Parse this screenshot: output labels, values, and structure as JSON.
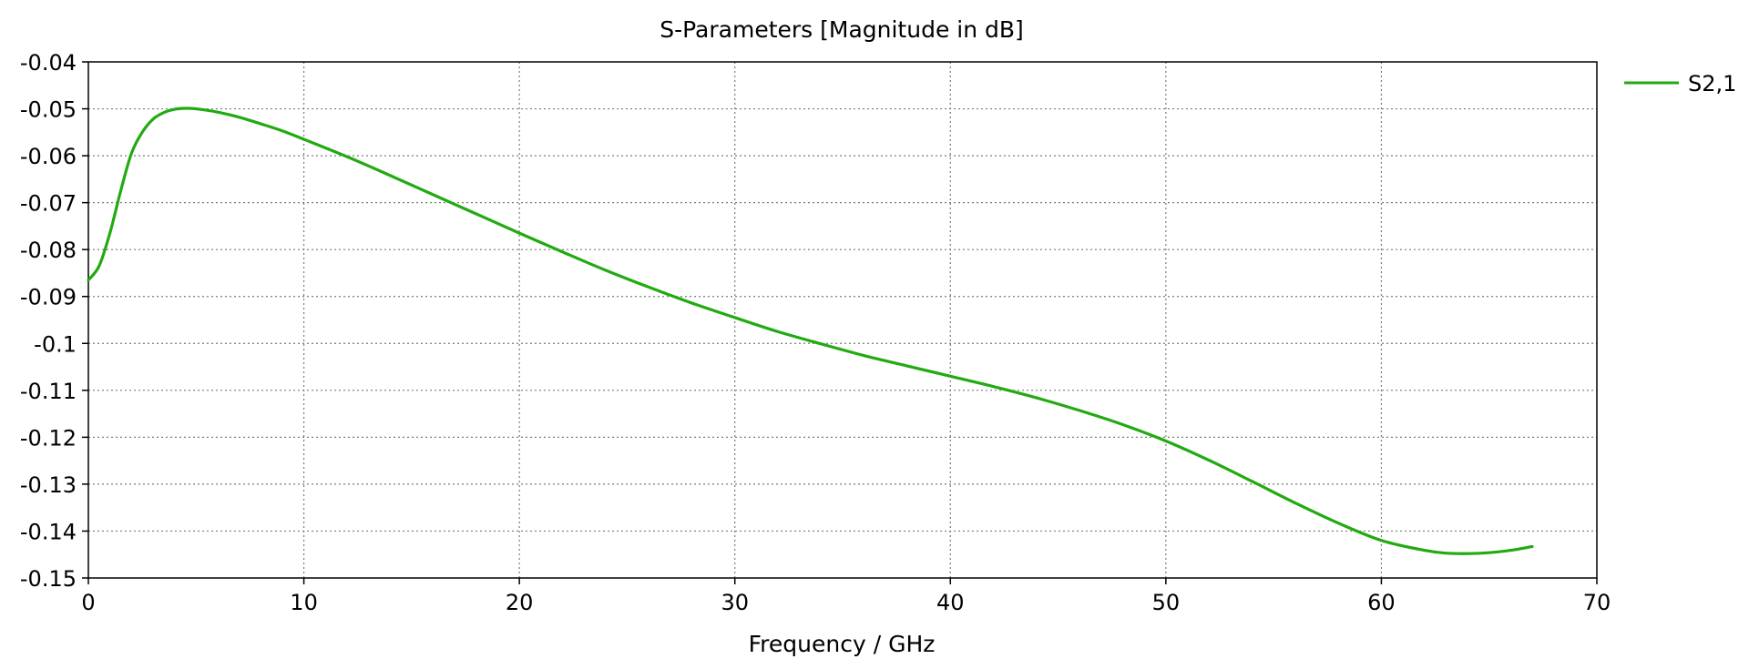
{
  "chart_data": {
    "type": "line",
    "title": "S-Parameters [Magnitude in dB]",
    "xlabel": "Frequency / GHz",
    "ylabel": "",
    "xlim": [
      0,
      70
    ],
    "ylim": [
      -0.15,
      -0.04
    ],
    "xticks": [
      0,
      10,
      20,
      30,
      40,
      50,
      60,
      70
    ],
    "xtick_labels": [
      "0",
      "10",
      "20",
      "30",
      "40",
      "50",
      "60",
      "70"
    ],
    "yticks": [
      -0.04,
      -0.05,
      -0.06,
      -0.07,
      -0.08,
      -0.09,
      -0.1,
      -0.11,
      -0.12,
      -0.13,
      -0.14,
      -0.15
    ],
    "ytick_labels": [
      "-0.04",
      "-0.05",
      "-0.06",
      "-0.07",
      "-0.08",
      "-0.09",
      "-0.1",
      "-0.11",
      "-0.12",
      "-0.13",
      "-0.14",
      "-0.15"
    ],
    "grid": true,
    "legend_position": "right",
    "series": [
      {
        "name": "S2,1",
        "color": "#22aa11",
        "x": [
          0,
          0.5,
          1,
          1.5,
          2,
          2.5,
          3,
          3.5,
          4,
          4.5,
          5,
          6,
          7,
          8,
          9,
          10,
          12,
          14,
          16,
          18,
          20,
          22,
          24,
          26,
          28,
          30,
          32,
          34,
          36,
          38,
          40,
          42,
          44,
          46,
          48,
          50,
          52,
          54,
          56,
          58,
          60,
          62,
          63,
          64,
          65,
          66,
          67
        ],
        "values": [
          -0.0865,
          -0.0835,
          -0.0765,
          -0.0675,
          -0.0595,
          -0.055,
          -0.0522,
          -0.0508,
          -0.0501,
          -0.0499,
          -0.05,
          -0.0507,
          -0.0518,
          -0.0532,
          -0.0547,
          -0.0565,
          -0.0602,
          -0.0642,
          -0.0683,
          -0.0724,
          -0.0765,
          -0.0805,
          -0.0844,
          -0.088,
          -0.0914,
          -0.0945,
          -0.0975,
          -0.1001,
          -0.1026,
          -0.1048,
          -0.107,
          -0.1092,
          -0.1116,
          -0.1143,
          -0.1173,
          -0.1208,
          -0.1249,
          -0.1294,
          -0.134,
          -0.1383,
          -0.142,
          -0.1441,
          -0.1447,
          -0.1448,
          -0.1446,
          -0.1441,
          -0.1433
        ]
      }
    ]
  }
}
